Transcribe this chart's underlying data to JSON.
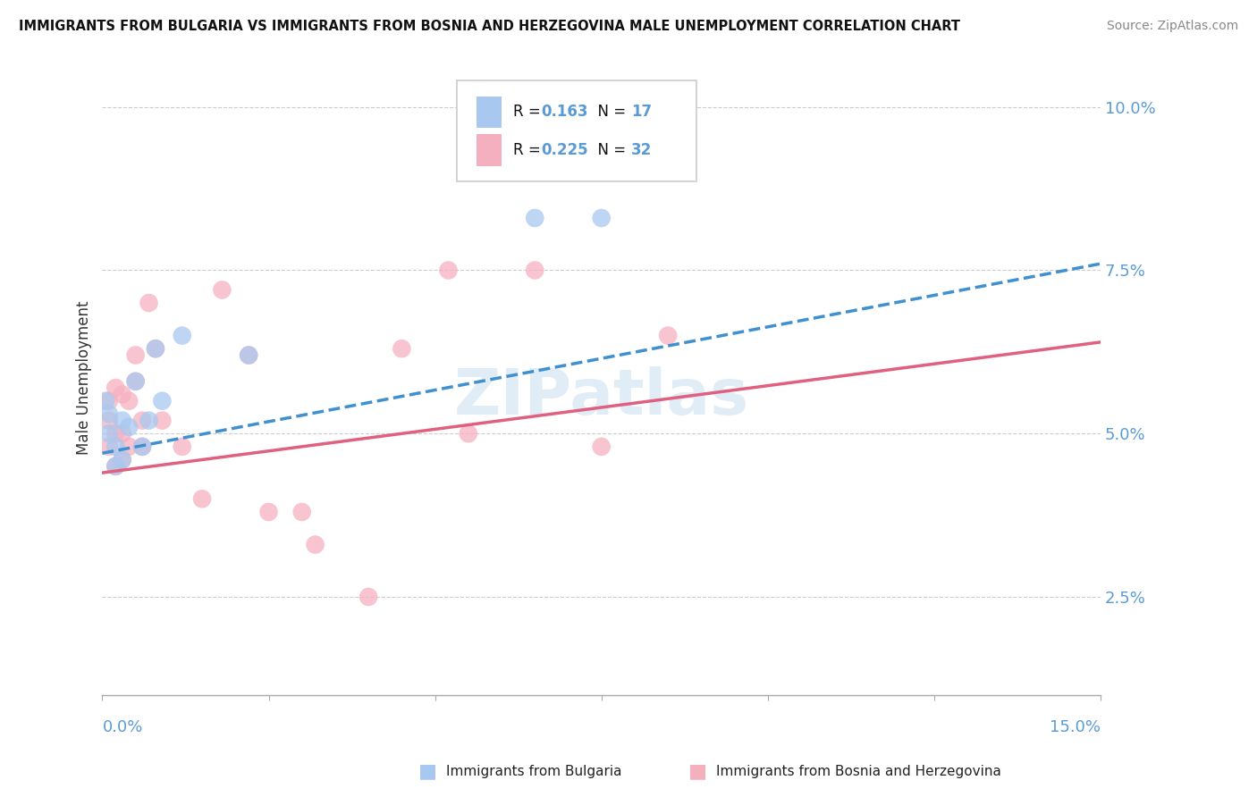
{
  "title": "IMMIGRANTS FROM BULGARIA VS IMMIGRANTS FROM BOSNIA AND HERZEGOVINA MALE UNEMPLOYMENT CORRELATION CHART",
  "source": "Source: ZipAtlas.com",
  "ylabel": "Male Unemployment",
  "y_ticks": [
    0.025,
    0.05,
    0.075,
    0.1
  ],
  "y_tick_labels": [
    "2.5%",
    "5.0%",
    "7.5%",
    "10.0%"
  ],
  "x_range": [
    0.0,
    0.15
  ],
  "y_range": [
    0.01,
    0.107
  ],
  "legend_label_bulgaria": "Immigrants from Bulgaria",
  "legend_label_bosnia": "Immigrants from Bosnia and Herzegovina",
  "color_bulgaria": "#a8c8f0",
  "color_bosnia": "#f5b0c0",
  "color_trend_bulgaria": "#4090d0",
  "color_trend_bosnia": "#e06080",
  "color_text_blue": "#5b9bd5",
  "color_text_dark": "#1a1a2e",
  "color_source": "#888888",
  "watermark": "ZIPatlas",
  "bulgaria_x": [
    0.0005,
    0.001,
    0.001,
    0.002,
    0.002,
    0.003,
    0.003,
    0.004,
    0.005,
    0.006,
    0.007,
    0.008,
    0.009,
    0.012,
    0.022,
    0.065,
    0.075
  ],
  "bulgaria_y": [
    0.055,
    0.053,
    0.05,
    0.048,
    0.045,
    0.052,
    0.046,
    0.051,
    0.058,
    0.048,
    0.052,
    0.063,
    0.055,
    0.065,
    0.062,
    0.083,
    0.083
  ],
  "bosnia_x": [
    0.001,
    0.001,
    0.001,
    0.002,
    0.002,
    0.002,
    0.003,
    0.003,
    0.003,
    0.004,
    0.004,
    0.005,
    0.005,
    0.006,
    0.006,
    0.007,
    0.008,
    0.009,
    0.012,
    0.015,
    0.018,
    0.022,
    0.025,
    0.03,
    0.032,
    0.04,
    0.045,
    0.052,
    0.055,
    0.065,
    0.075,
    0.085
  ],
  "bosnia_y": [
    0.055,
    0.052,
    0.048,
    0.057,
    0.05,
    0.045,
    0.056,
    0.05,
    0.046,
    0.055,
    0.048,
    0.062,
    0.058,
    0.052,
    0.048,
    0.07,
    0.063,
    0.052,
    0.048,
    0.04,
    0.072,
    0.062,
    0.038,
    0.038,
    0.033,
    0.025,
    0.063,
    0.075,
    0.05,
    0.075,
    0.048,
    0.065
  ],
  "trend_bulgaria_x0": 0.0,
  "trend_bulgaria_y0": 0.047,
  "trend_bulgaria_x1": 0.15,
  "trend_bulgaria_y1": 0.076,
  "trend_bosnia_x0": 0.0,
  "trend_bosnia_y0": 0.044,
  "trend_bosnia_x1": 0.15,
  "trend_bosnia_y1": 0.064
}
